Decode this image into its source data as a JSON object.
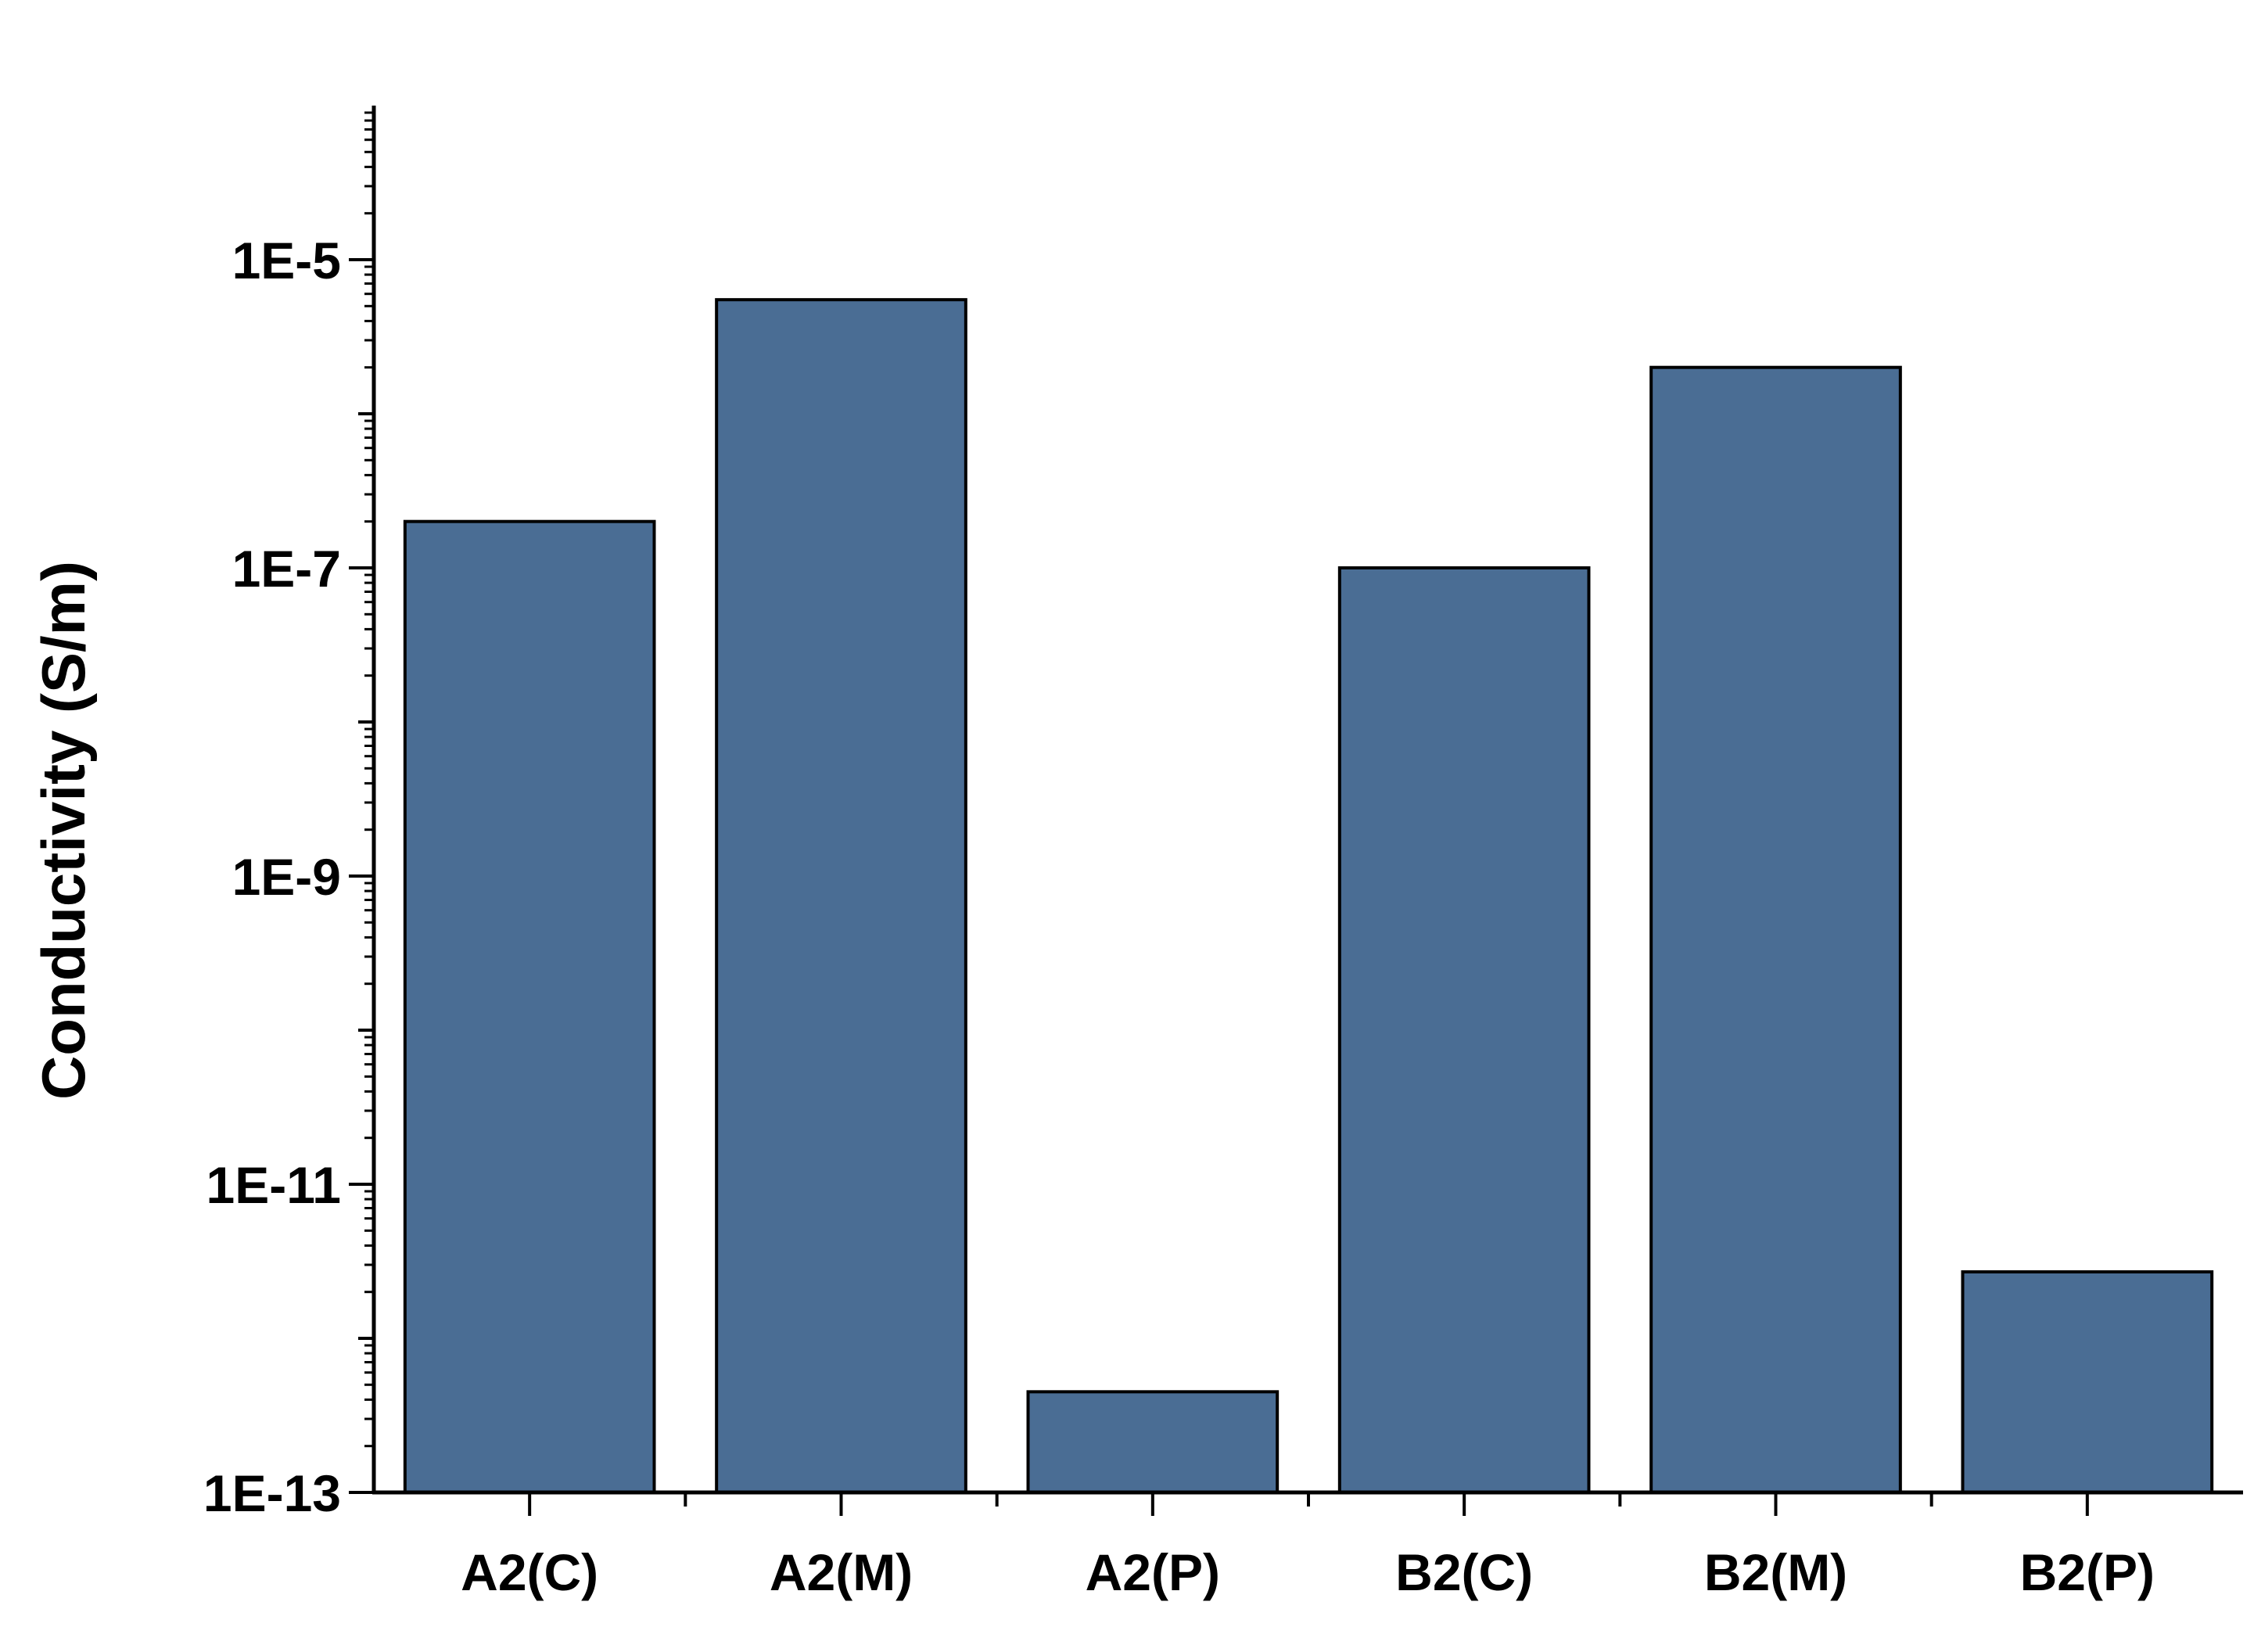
{
  "chart_data": {
    "type": "bar",
    "categories": [
      "A2(C)",
      "A2(M)",
      "A2(P)",
      "B2(C)",
      "B2(M)",
      "B2(P)"
    ],
    "values": [
      2e-07,
      5.5e-06,
      4.5e-13,
      1e-07,
      2e-06,
      2.7e-12
    ],
    "title": "",
    "xlabel": "",
    "ylabel": "Conductivity (S/m)",
    "yscale": "log",
    "ylim": [
      1e-13,
      0.0001
    ],
    "yticks": [
      {
        "value": 1e-05,
        "label": "1E-5"
      },
      {
        "value": 1e-07,
        "label": "1E-7"
      },
      {
        "value": 1e-09,
        "label": "1E-9"
      },
      {
        "value": 1e-11,
        "label": "1E-11"
      },
      {
        "value": 1e-13,
        "label": "1E-13"
      }
    ],
    "grid": false,
    "legend": "none",
    "bar_color": "#4a6d94",
    "bar_edge_color": "#000000"
  }
}
